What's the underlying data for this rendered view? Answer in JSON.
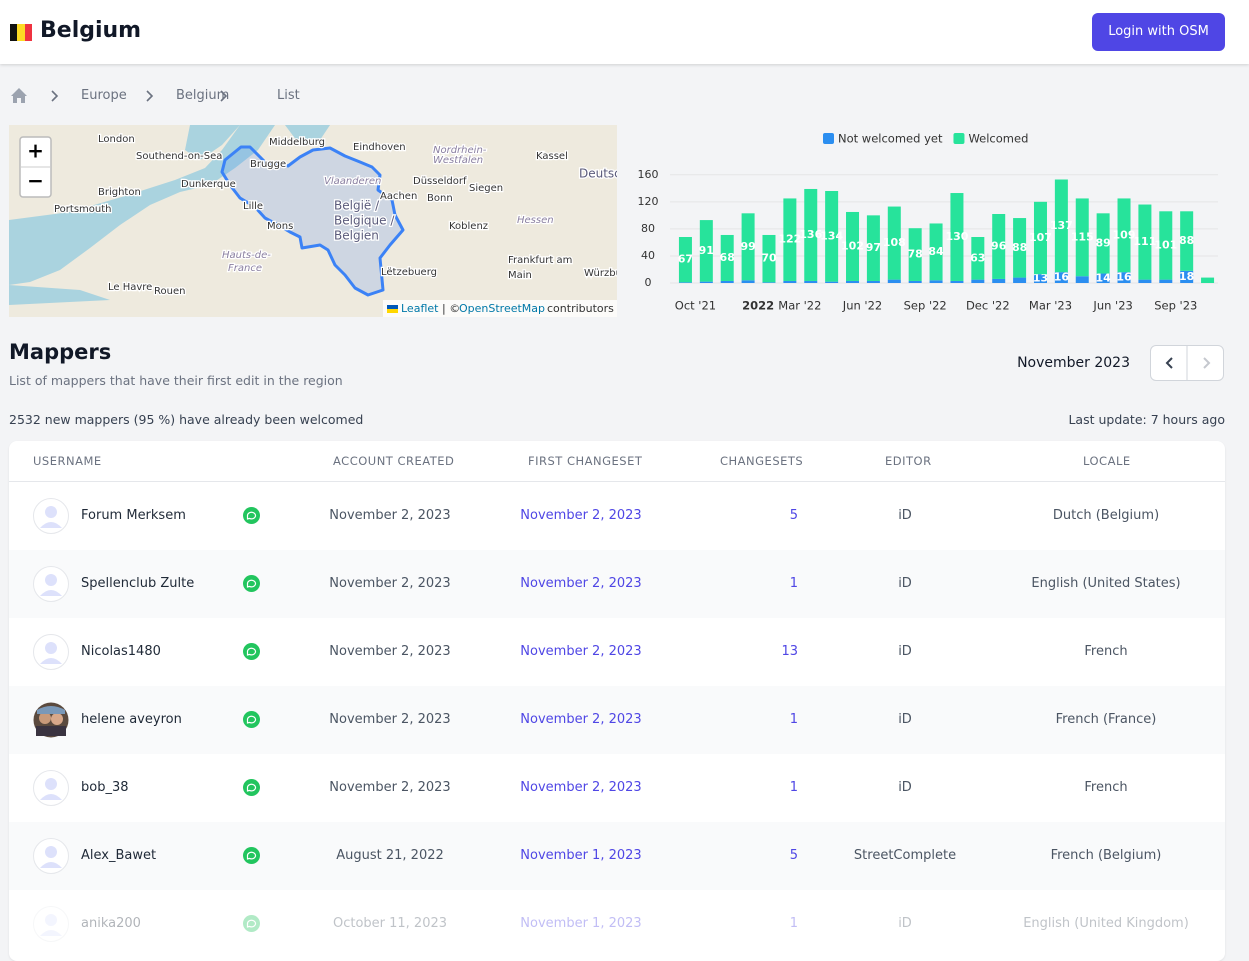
{
  "header": {
    "title": "Belgium",
    "login": "Login with OSM"
  },
  "breadcrumb": [
    "Europe",
    "Belgium",
    "List"
  ],
  "map": {
    "zoom_in": "+",
    "zoom_out": "−",
    "labels": [
      "London",
      "Southend-on-Sea",
      "Brighton",
      "Portsmouth",
      "Dunkerque",
      "Middelburg",
      "Brugge",
      "Lille",
      "Mons",
      "Vlaanderen",
      "België /",
      "Belgique /",
      "Belgien",
      "Eindhoven",
      "Düsseldorf",
      "Nordrhein-",
      "Westfalen",
      "Kassel",
      "Deutschland",
      "Siegen",
      "Aachen",
      "Bonn",
      "Koblenz",
      "Hessen",
      "Frankfurt am",
      "Main",
      "Würzburg",
      "Hauts-de-",
      "France",
      "Le Havre",
      "Rouen",
      "Lëtzebuerg"
    ],
    "attribution": {
      "leaflet": "Leaflet",
      "sep": "| ©",
      "osm": "OpenStreetMap",
      "rest": "contributors"
    }
  },
  "chart_data": {
    "type": "stacked-bar",
    "categories": [
      "Oct '21",
      null,
      null,
      "2022",
      null,
      "Mar '22",
      null,
      null,
      "Jun '22",
      null,
      null,
      "Sep '22",
      null,
      null,
      "Dec '22",
      null,
      null,
      "Mar '23",
      null,
      null,
      "Jun '23",
      null,
      null,
      "Sep '23",
      null,
      null
    ],
    "series": [
      {
        "name": "Not welcomed yet",
        "color": "#2b8ef0",
        "values": [
          1,
          2,
          3,
          4,
          1,
          3,
          3,
          2,
          3,
          3,
          5,
          3,
          4,
          3,
          5,
          6,
          8,
          13,
          16,
          10,
          14,
          16,
          5,
          5,
          18,
          0
        ]
      },
      {
        "name": "Welcomed",
        "color": "#27e39b",
        "values": [
          67,
          91,
          68,
          99,
          70,
          122,
          136,
          134,
          102,
          97,
          108,
          78,
          84,
          130,
          63,
          96,
          88,
          107,
          137,
          115,
          89,
          109,
          111,
          101,
          88,
          8
        ]
      }
    ],
    "ylim": [
      0,
      170
    ],
    "yticks": [
      0,
      40,
      80,
      120,
      160
    ],
    "grid": true,
    "legend": "top"
  },
  "mappers": {
    "title": "Mappers",
    "subtitle": "List of mappers that have their first edit in the region",
    "month": "November 2023",
    "welcomed": "2532 new mappers (95 %) have already been welcomed",
    "last_update": "Last update: 7 hours ago"
  },
  "table": {
    "columns": [
      "USERNAME",
      "ACCOUNT CREATED",
      "FIRST CHANGESET",
      "CHANGESETS",
      "EDITOR",
      "LOCALE"
    ],
    "rows": [
      [
        "Forum Merksem",
        "November 2, 2023",
        "November 2, 2023",
        5,
        "iD",
        "Dutch (Belgium)"
      ],
      [
        "Spellenclub Zulte",
        "November 2, 2023",
        "November 2, 2023",
        1,
        "iD",
        "English (United States)"
      ],
      [
        "Nicolas1480",
        "November 2, 2023",
        "November 2, 2023",
        13,
        "iD",
        "French"
      ],
      [
        "helene aveyron",
        "November 2, 2023",
        "November 2, 2023",
        1,
        "iD",
        "French (France)"
      ],
      [
        "bob_38",
        "November 2, 2023",
        "November 2, 2023",
        1,
        "iD",
        "French"
      ],
      [
        "Alex_Bawet",
        "August 21, 2022",
        "November 1, 2023",
        5,
        "StreetComplete",
        "French (Belgium)"
      ],
      [
        "anika200",
        "October 11, 2023",
        "November 1, 2023",
        1,
        "iD",
        "English (United Kingdom)"
      ]
    ]
  }
}
